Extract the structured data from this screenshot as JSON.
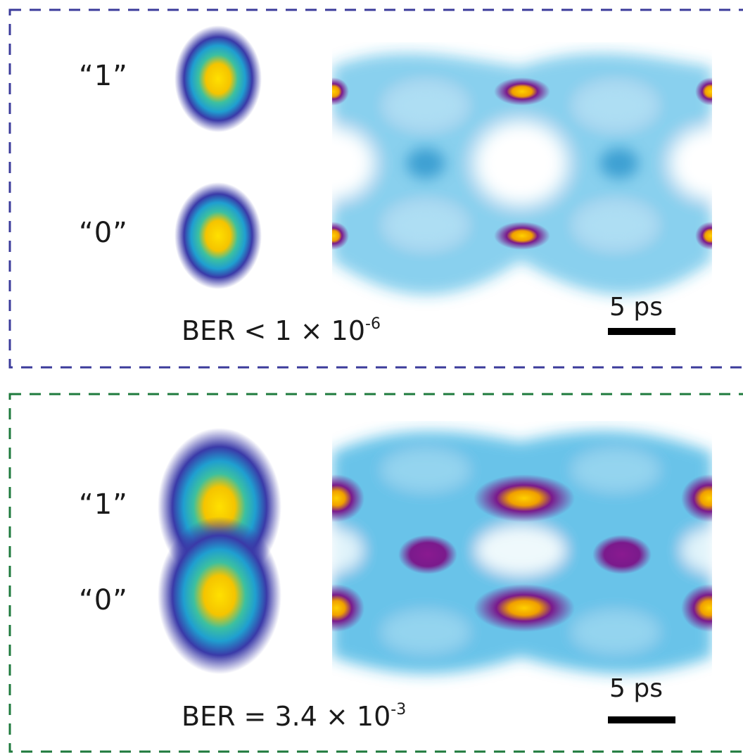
{
  "colors": {
    "top_border": "#3b3b9b",
    "bottom_border": "#1e7a3c",
    "cloud_edge": "#3a3aa8",
    "cloud_mid": "#22a8d0",
    "cloud_core": "#ffe000",
    "eye_trace": "#29a9e0",
    "eye_dense": "#7a1a8c"
  },
  "chart_data": [
    {
      "type": "scatter",
      "kind": "constellation-and-eye-diagram",
      "panel": "top",
      "state_labels": [
        "“1”",
        "“0”"
      ],
      "ber_prefix": "BER < 1 × 10",
      "ber_exponent": "-6",
      "ber_value": 1e-06,
      "ber_relation": "<",
      "scale_bar_label": "5 ps",
      "scale_bar_ps": 5,
      "clusters": [
        {
          "state": "1",
          "spread": "narrow"
        },
        {
          "state": "0",
          "spread": "narrow"
        }
      ],
      "eye": "open"
    },
    {
      "type": "scatter",
      "kind": "constellation-and-eye-diagram",
      "panel": "bottom",
      "state_labels": [
        "“1”",
        "“0”"
      ],
      "ber_prefix": "BER = 3.4 × 10",
      "ber_exponent": "-3",
      "ber_value": 0.0034,
      "ber_relation": "=",
      "scale_bar_label": "5 ps",
      "scale_bar_ps": 5,
      "clusters": [
        {
          "state": "1",
          "spread": "wide"
        },
        {
          "state": "0",
          "spread": "wide"
        }
      ],
      "eye": "nearly-closed"
    }
  ]
}
